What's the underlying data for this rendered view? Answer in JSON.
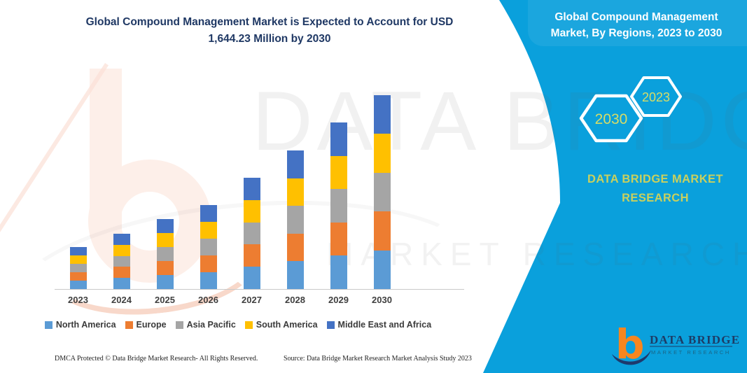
{
  "header": {
    "title_line1": "Global Compound Management Market is Expected to Account for USD",
    "title_line2": "1,644.23 Million by 2030"
  },
  "right_panel": {
    "title_line1": "Global Compound Management",
    "title_line2": "Market, By Regions, 2023 to 2030",
    "hexagons": [
      {
        "label": "2030"
      },
      {
        "label": "2023"
      }
    ],
    "caption_line1": "DATA BRIDGE MARKET",
    "caption_line2": "RESEARCH",
    "logo": {
      "letter": "b",
      "name": "DATA BRIDGE",
      "tagline": "MARKET RESEARCH"
    },
    "colors": {
      "panel_blue": "#0AA0DC",
      "hex_label_olive": "#D6DC66",
      "caption_olive": "#C9D05E",
      "logo_orange": "#F6861F",
      "logo_navy": "#1E3A6D"
    }
  },
  "watermark": {
    "line1": "DATA BRIDGE",
    "line2": "MARKET RESEARCH"
  },
  "chart_data": {
    "type": "bar",
    "stacked": true,
    "title": "Global Compound Management Market is Expected to Account for USD 1,644.23 Million by 2030",
    "unit": "USD Million",
    "value_axis_visible": false,
    "grid": false,
    "legend_position": "bottom",
    "categories": [
      "2023",
      "2024",
      "2025",
      "2026",
      "2027",
      "2028",
      "2029",
      "2030"
    ],
    "series": [
      {
        "name": "North America",
        "color": "#5B9BD5",
        "values": [
          71.0,
          93.4,
          118.2,
          142.0,
          188.0,
          234.2,
          281.6,
          328.8
        ]
      },
      {
        "name": "Europe",
        "color": "#ED7D31",
        "values": [
          71.0,
          93.4,
          118.2,
          142.0,
          188.0,
          234.2,
          281.6,
          328.8
        ]
      },
      {
        "name": "Asia Pacific",
        "color": "#A5A5A5",
        "values": [
          71.0,
          93.4,
          118.2,
          142.0,
          188.0,
          234.2,
          281.6,
          328.8
        ]
      },
      {
        "name": "South America",
        "color": "#FFC000",
        "values": [
          71.0,
          93.4,
          118.2,
          142.0,
          188.0,
          234.2,
          281.6,
          328.8
        ]
      },
      {
        "name": "Middle East and Africa",
        "color": "#4472C4",
        "values": [
          71.0,
          93.4,
          118.2,
          142.0,
          188.0,
          234.2,
          281.6,
          328.8
        ]
      }
    ],
    "estimated_totals": [
      355,
      467,
      591,
      710,
      940,
      1171,
      1408,
      1644.23
    ]
  },
  "footer": {
    "left": "DMCA Protected © Data Bridge Market Research-  All Rights Reserved.",
    "right": "Source: Data Bridge Market Research  Market Analysis Study 2023"
  }
}
